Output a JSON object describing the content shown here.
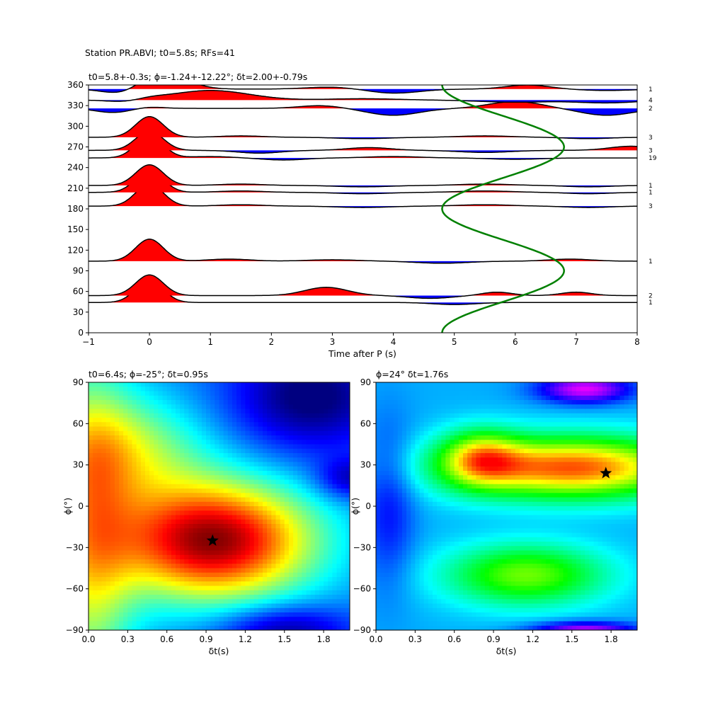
{
  "suptitle": "Station PR.ABVI; t0=5.8s; RFs=41",
  "chart_data": [
    {
      "type": "line",
      "panel": "receiver-functions",
      "title": "t0=5.8+-0.3s; ϕ=-1.24+-12.22°; δt=2.00+-0.79s",
      "xlabel": "Time after P (s)",
      "ylabel": "",
      "xlim": [
        -1,
        8
      ],
      "ylim": [
        0,
        360
      ],
      "xticks": [
        "−1",
        "0",
        "1",
        "2",
        "3",
        "4",
        "5",
        "6",
        "7",
        "8"
      ],
      "yticks": [
        "0",
        "30",
        "60",
        "90",
        "120",
        "150",
        "180",
        "210",
        "240",
        "270",
        "300",
        "330",
        "360"
      ],
      "fill_colors": {
        "positive": "#ff0000",
        "negative": "#0000ff"
      },
      "traces": [
        {
          "baz": 44,
          "count": "1",
          "direct_amp": 32,
          "later": [
            [
              0.2,
              0.5,
              0
            ],
            [
              2.9,
              0.5,
              0
            ],
            [
              5.0,
              0.5,
              -3
            ],
            [
              6.5,
              0.5,
              0
            ]
          ]
        },
        {
          "baz": 54,
          "count": "2",
          "direct_amp": 30,
          "later": [
            [
              2.9,
              0.5,
              12
            ],
            [
              4.6,
              0.5,
              -4
            ],
            [
              5.7,
              0.35,
              5
            ],
            [
              7.0,
              0.35,
              5
            ]
          ]
        },
        {
          "baz": 104,
          "count": "1",
          "direct_amp": 32,
          "later": [
            [
              1.3,
              0.5,
              3
            ],
            [
              3.0,
              0.6,
              2
            ],
            [
              4.8,
              0.6,
              -3
            ],
            [
              6.9,
              0.5,
              3
            ]
          ]
        },
        {
          "baz": 184,
          "count": "3",
          "direct_amp": 32,
          "later": [
            [
              1.5,
              0.5,
              2
            ],
            [
              3.5,
              0.6,
              -2
            ],
            [
              5.5,
              0.6,
              2
            ],
            [
              7.2,
              0.5,
              -2
            ]
          ]
        },
        {
          "baz": 204,
          "count": "1",
          "direct_amp": 32,
          "later": [
            [
              1.5,
              0.5,
              2
            ],
            [
              3.5,
              0.6,
              -2
            ],
            [
              5.5,
              0.6,
              2
            ],
            [
              7.2,
              0.5,
              -2
            ]
          ]
        },
        {
          "baz": 214,
          "count": "1",
          "direct_amp": 30,
          "later": [
            [
              1.5,
              0.5,
              2
            ],
            [
              3.5,
              0.6,
              -2
            ],
            [
              5.5,
              0.6,
              2
            ],
            [
              7.2,
              0.5,
              -2
            ]
          ]
        },
        {
          "baz": 254,
          "count": "19",
          "direct_amp": 32,
          "later": [
            [
              1.0,
              0.5,
              2
            ],
            [
              2.2,
              0.5,
              -3
            ],
            [
              4.0,
              0.6,
              2
            ],
            [
              6.0,
              0.6,
              -2
            ]
          ]
        },
        {
          "baz": 265,
          "count": "3",
          "direct_amp": 28,
          "later": [
            [
              1.8,
              0.5,
              -4
            ],
            [
              3.6,
              0.5,
              4
            ],
            [
              5.5,
              0.6,
              -3
            ],
            [
              7.9,
              0.5,
              6
            ]
          ]
        },
        {
          "baz": 284,
          "count": "3",
          "direct_amp": 30,
          "later": [
            [
              1.5,
              0.5,
              2
            ],
            [
              3.5,
              0.6,
              -2
            ],
            [
              5.5,
              0.6,
              2
            ],
            [
              7.2,
              0.5,
              -2
            ]
          ]
        },
        {
          "baz": 326,
          "count": "2",
          "direct_amp": 2,
          "later": [
            [
              -0.6,
              0.4,
              -6
            ],
            [
              2.8,
              0.5,
              4
            ],
            [
              4.0,
              0.6,
              -10
            ],
            [
              6.0,
              0.6,
              10
            ],
            [
              7.5,
              0.6,
              -10
            ]
          ]
        },
        {
          "baz": 338,
          "count": "4",
          "direct_amp": 2,
          "later": [
            [
              -0.4,
              0.4,
              -3
            ],
            [
              1.0,
              0.9,
              14
            ],
            [
              3.5,
              0.8,
              2
            ],
            [
              6.0,
              0.8,
              -3
            ],
            [
              7.5,
              0.7,
              -4
            ]
          ]
        },
        {
          "baz": 354,
          "count": "1",
          "direct_amp": 5,
          "later": [
            [
              -0.5,
              0.4,
              -6
            ],
            [
              0.3,
              0.5,
              20
            ],
            [
              3.0,
              0.6,
              3
            ],
            [
              4.0,
              0.6,
              -6
            ],
            [
              6.2,
              0.5,
              6
            ],
            [
              7.5,
              0.6,
              -2
            ]
          ]
        }
      ],
      "moveout_curve": {
        "color": "#008000",
        "t0": 5.8,
        "amplitude": 1.0,
        "phase_deg": 0,
        "period_deg": 180
      }
    },
    {
      "type": "heatmap",
      "panel": "grid-search-left",
      "title": "t0=6.4s; ϕ=-25°; δt=0.95s",
      "xlabel": "δt(s)",
      "ylabel": "ϕ(°)",
      "xlim": [
        0,
        2
      ],
      "ylim": [
        -90,
        90
      ],
      "xticks": [
        "0.0",
        "0.3",
        "0.6",
        "0.9",
        "1.2",
        "1.5",
        "1.8"
      ],
      "yticks": [
        "−90",
        "−60",
        "−30",
        "0",
        "30",
        "60",
        "90"
      ],
      "colormap": "jet",
      "best_fit": {
        "dt": 0.95,
        "phi": -25
      }
    },
    {
      "type": "heatmap",
      "panel": "grid-search-right",
      "title": "ϕ=24° δt=1.76s",
      "xlabel": "δt(s)",
      "ylabel": "ϕ(°)",
      "xlim": [
        0,
        2
      ],
      "ylim": [
        -90,
        90
      ],
      "xticks": [
        "0.0",
        "0.3",
        "0.6",
        "0.9",
        "1.2",
        "1.5",
        "1.8"
      ],
      "yticks": [
        "−90",
        "−60",
        "−30",
        "0",
        "30",
        "60",
        "90"
      ],
      "colormap": "hsv",
      "best_fit": {
        "dt": 1.76,
        "phi": 24
      }
    }
  ]
}
